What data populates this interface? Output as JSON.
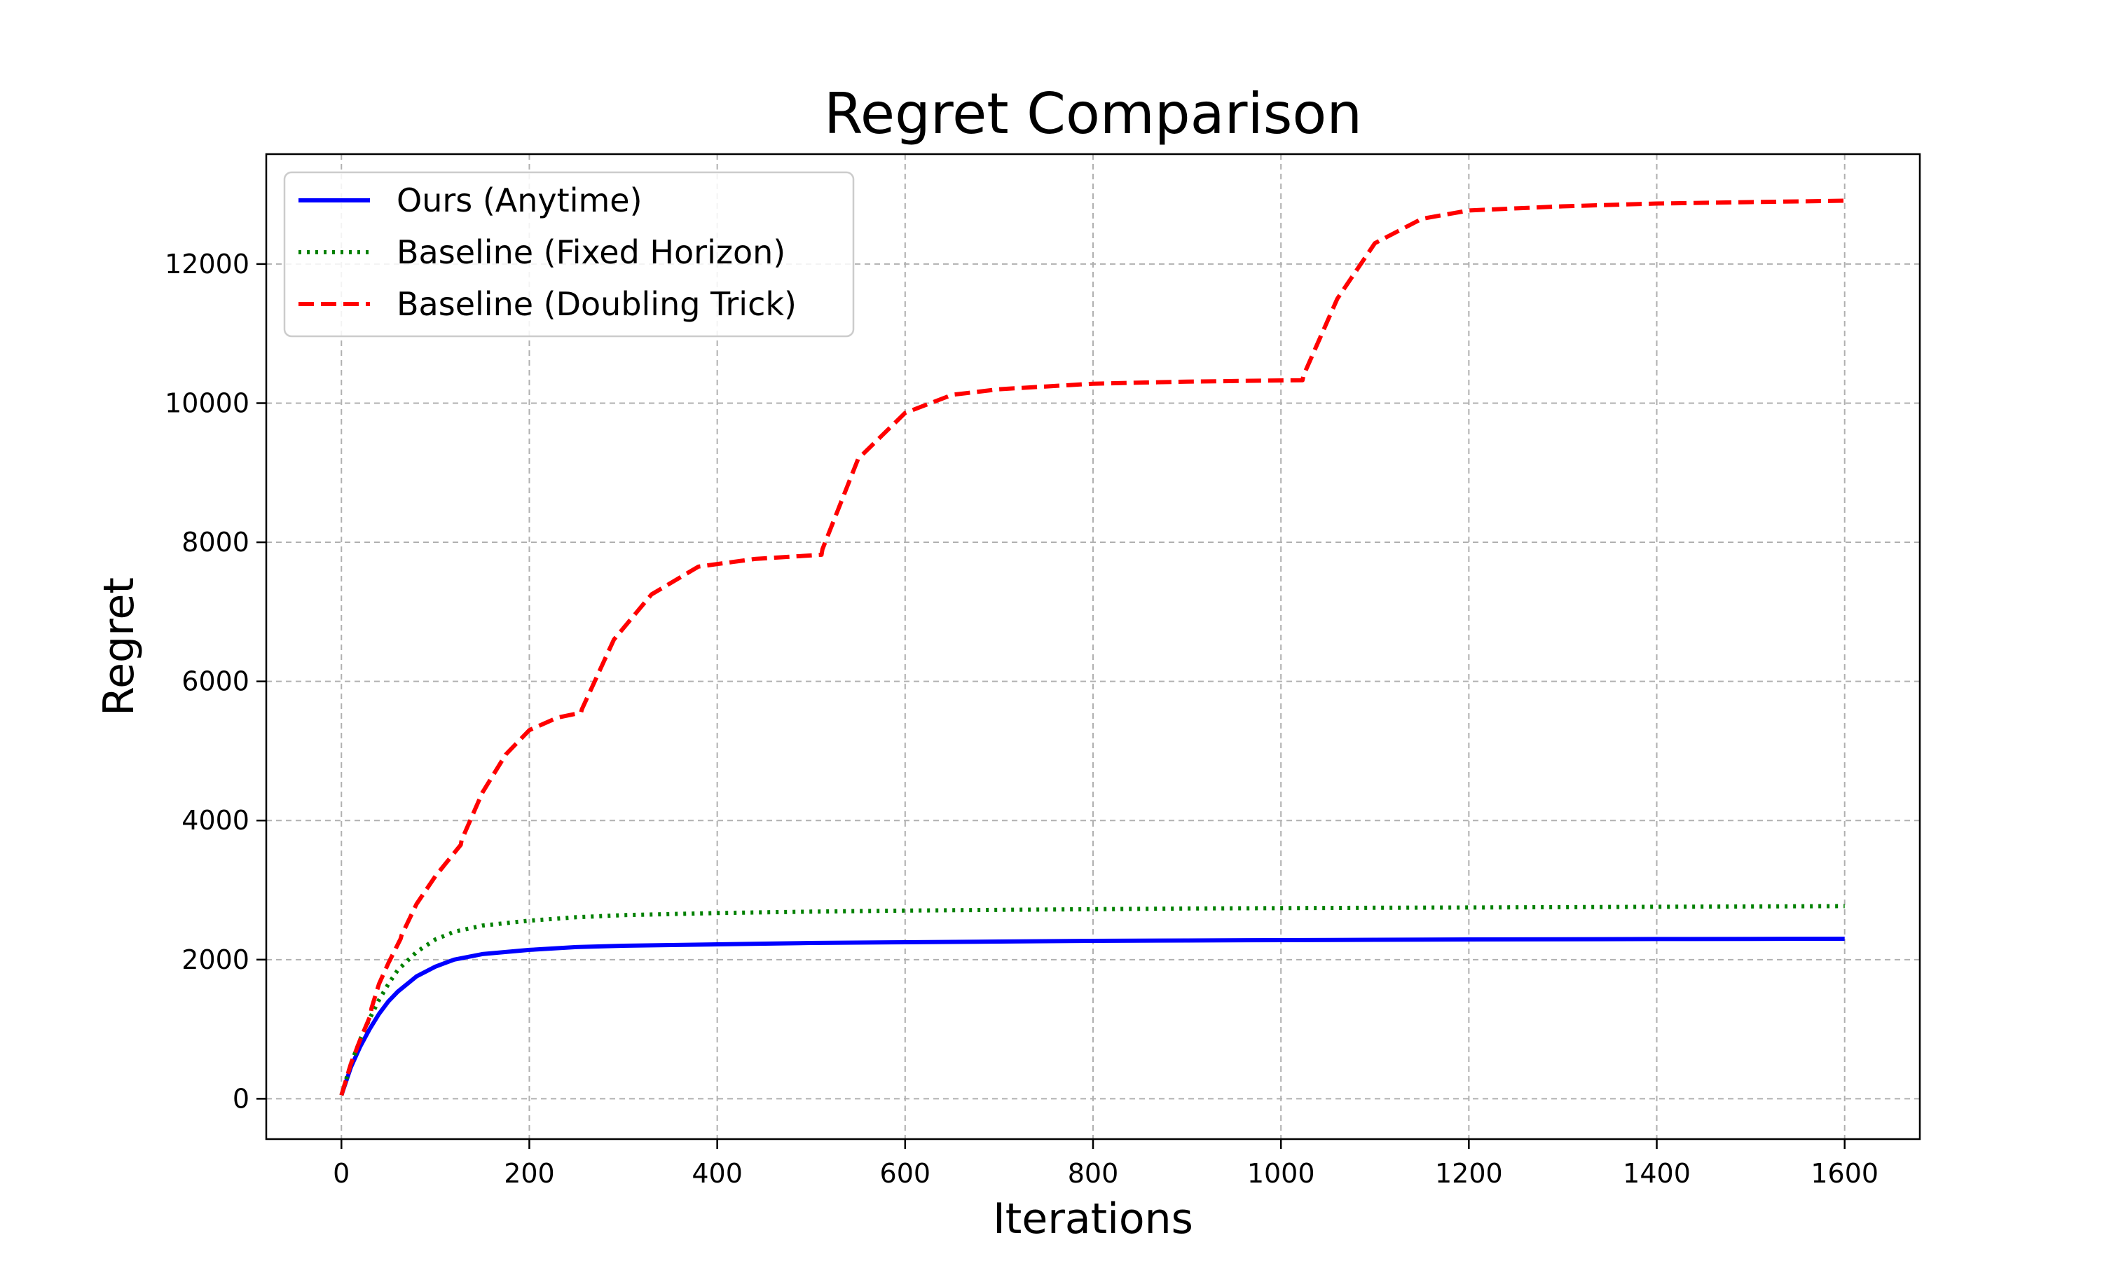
{
  "chart_data": {
    "type": "line",
    "title": "Regret Comparison",
    "xlabel": "Iterations",
    "ylabel": "Regret",
    "xlim": [
      -80,
      1680
    ],
    "ylim": [
      -580,
      13580
    ],
    "xticks": [
      0,
      200,
      400,
      600,
      800,
      1000,
      1200,
      1400,
      1600
    ],
    "yticks": [
      0,
      2000,
      4000,
      6000,
      8000,
      10000,
      12000
    ],
    "grid": true,
    "legend_position": "top-left",
    "series": [
      {
        "name": "Ours (Anytime)",
        "color": "#0000ff",
        "style": "solid",
        "x": [
          0,
          10,
          20,
          30,
          40,
          50,
          60,
          80,
          100,
          120,
          150,
          200,
          250,
          300,
          400,
          500,
          600,
          700,
          800,
          900,
          1000,
          1100,
          1200,
          1300,
          1400,
          1500,
          1600
        ],
        "y": [
          50,
          450,
          750,
          1000,
          1220,
          1400,
          1540,
          1760,
          1900,
          2000,
          2080,
          2140,
          2180,
          2200,
          2220,
          2240,
          2250,
          2260,
          2270,
          2275,
          2280,
          2285,
          2290,
          2293,
          2296,
          2298,
          2300
        ]
      },
      {
        "name": "Baseline (Fixed Horizon)",
        "color": "#008000",
        "style": "dotted",
        "x": [
          0,
          10,
          20,
          30,
          40,
          50,
          60,
          80,
          100,
          120,
          150,
          200,
          250,
          300,
          400,
          500,
          600,
          700,
          800,
          900,
          1000,
          1100,
          1200,
          1300,
          1400,
          1500,
          1600
        ],
        "y": [
          50,
          500,
          850,
          1150,
          1420,
          1650,
          1850,
          2110,
          2290,
          2400,
          2490,
          2560,
          2610,
          2640,
          2670,
          2690,
          2705,
          2715,
          2725,
          2735,
          2740,
          2745,
          2750,
          2755,
          2760,
          2765,
          2770
        ]
      },
      {
        "name": "Baseline (Doubling Trick)",
        "color": "#ff0000",
        "style": "dashed",
        "x": [
          0,
          10,
          20,
          31,
          32,
          40,
          50,
          63,
          64,
          80,
          100,
          127,
          128,
          150,
          175,
          200,
          230,
          255,
          256,
          290,
          330,
          380,
          440,
          511,
          512,
          550,
          600,
          650,
          700,
          800,
          900,
          1023,
          1024,
          1060,
          1100,
          1150,
          1200,
          1300,
          1400,
          1500,
          1600
        ],
        "y": [
          50,
          500,
          850,
          1200,
          1300,
          1650,
          1950,
          2300,
          2350,
          2800,
          3200,
          3650,
          3720,
          4400,
          4950,
          5300,
          5480,
          5550,
          5600,
          6600,
          7250,
          7650,
          7760,
          7820,
          7900,
          9200,
          9860,
          10120,
          10200,
          10280,
          10310,
          10330,
          10400,
          11500,
          12300,
          12650,
          12770,
          12830,
          12870,
          12890,
          12910
        ]
      }
    ]
  }
}
